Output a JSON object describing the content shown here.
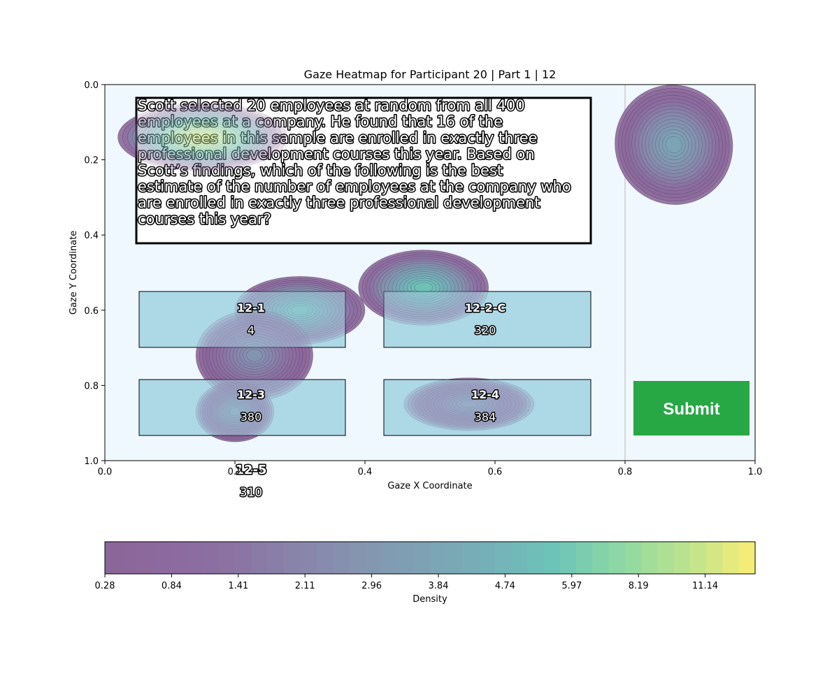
{
  "chart_data": {
    "type": "heatmap",
    "title": "Gaze Heatmap for Participant 20 | Part 1 | 12",
    "xlabel": "Gaze X Coordinate",
    "ylabel": "Gaze Y Coordinate",
    "xlim": [
      0,
      1
    ],
    "ylim": [
      1,
      0
    ],
    "x_ticks": [
      "0.0",
      "0.2",
      "0.4",
      "0.6",
      "0.8",
      "1.0"
    ],
    "y_ticks": [
      "0.0",
      "0.2",
      "0.4",
      "0.6",
      "0.8",
      "1.0"
    ],
    "colorbar": {
      "label": "Density",
      "ticks": [
        "0.28",
        "0.84",
        "1.41",
        "2.11",
        "2.96",
        "3.84",
        "4.74",
        "5.97",
        "8.19",
        "11.14"
      ],
      "colors": [
        "#8a6699",
        "#8d6aa0",
        "#8b74a4",
        "#8886ab",
        "#8496b0",
        "#7da3b5",
        "#74b2b8",
        "#6cc4b7",
        "#8ed8a4",
        "#b9e28f",
        "#f3ed78"
      ]
    },
    "hotspots": [
      {
        "x": 0.15,
        "y": 0.14,
        "peak": 12.0,
        "sx": 0.13,
        "sy": 0.09
      },
      {
        "x": 0.3,
        "y": 0.6,
        "peak": 4.2,
        "sx": 0.1,
        "sy": 0.09
      },
      {
        "x": 0.49,
        "y": 0.54,
        "peak": 4.6,
        "sx": 0.1,
        "sy": 0.1
      },
      {
        "x": 0.23,
        "y": 0.72,
        "peak": 1.4,
        "sx": 0.09,
        "sy": 0.12
      },
      {
        "x": 0.2,
        "y": 0.87,
        "peak": 1.8,
        "sx": 0.06,
        "sy": 0.08
      },
      {
        "x": 0.56,
        "y": 0.85,
        "peak": 1.2,
        "sx": 0.1,
        "sy": 0.07
      },
      {
        "x": 0.875,
        "y": 0.16,
        "peak": 2.4,
        "sx": 0.09,
        "sy": 0.16
      }
    ]
  },
  "stimulus": {
    "question_lines": [
      "Scott selected 20 employees at random from all 400",
      "employees at a company. He found that 16 of the",
      "employees in this sample are enrolled in exactly three",
      "professional development courses this year. Based on",
      "Scott’s findings, which of the following is the best",
      "estimate of the number of employees at the company who",
      "are enrolled in exactly three professional development",
      "courses this year?"
    ],
    "options": [
      {
        "label": "12-1",
        "value": "4"
      },
      {
        "label": "12-2-C",
        "value": "320"
      },
      {
        "label": "12-3",
        "value": "380"
      },
      {
        "label": "12-4",
        "value": "384"
      },
      {
        "label": "12-5",
        "value": "310"
      }
    ],
    "submit_label": "Submit",
    "colors": {
      "plot_bg": "#f0f8ff",
      "option_fill": "#add8e6",
      "submit_fill": "#28a745"
    }
  }
}
